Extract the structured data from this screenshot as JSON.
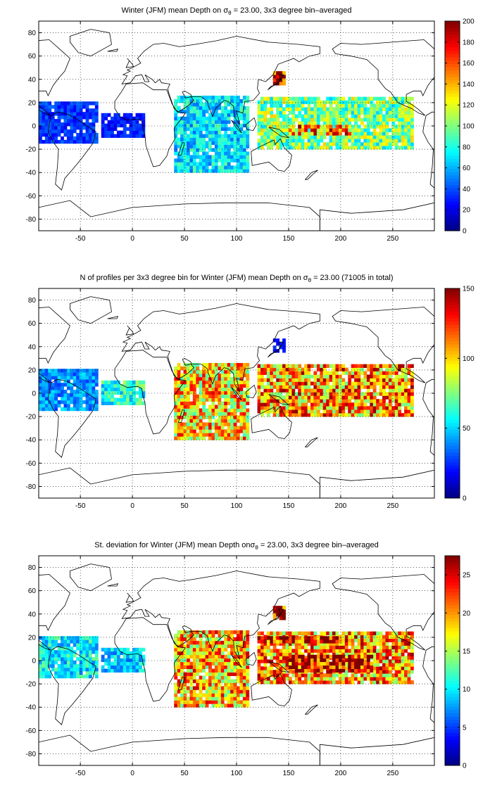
{
  "figure": {
    "panels": [
      {
        "title_prefix": "Winter (JFM) mean Depth on σ",
        "title_sub": "θ",
        "title_suffix": " = 23.00, 3x3 degree bin–averaged",
        "colorbar_ticks": [
          0,
          20,
          40,
          60,
          80,
          100,
          120,
          140,
          160,
          180,
          200
        ]
      },
      {
        "title_prefix": "N of profiles per 3x3 degree bin for Winter (JFM) mean Depth on σ",
        "title_sub": "θ",
        "title_suffix": " = 23.00 (71005 in total)",
        "colorbar_ticks": [
          0,
          50,
          100,
          150
        ]
      },
      {
        "title_prefix": "St. deviation for Winter (JFM) mean Depth onσ",
        "title_sub": "θ",
        "title_suffix": " = 23.00, 3x3 degree bin–averaged",
        "colorbar_ticks": [
          0,
          5,
          10,
          15,
          20,
          25
        ]
      }
    ]
  },
  "chart_data": [
    {
      "type": "heatmap",
      "title": "Winter (JFM) mean Depth on σθ = 23.00, 3x3 degree bin–averaged",
      "xlim": [
        -90,
        290
      ],
      "ylim": [
        -90,
        90
      ],
      "xticks": [
        -50,
        0,
        50,
        100,
        150,
        200,
        250
      ],
      "yticks": [
        -80,
        -60,
        -40,
        -20,
        0,
        20,
        40,
        60,
        80
      ],
      "grid": true,
      "colormap": "jet",
      "clim": [
        0,
        200
      ],
      "colorbar_ticks": [
        0,
        20,
        40,
        60,
        80,
        100,
        120,
        140,
        160,
        180,
        200
      ],
      "regions": [
        {
          "lon": [
            -90,
            -35
          ],
          "lat": [
            -15,
            20
          ],
          "value": 35
        },
        {
          "lon": [
            -30,
            10
          ],
          "lat": [
            -10,
            10
          ],
          "value": 30
        },
        {
          "lon": [
            40,
            110
          ],
          "lat": [
            -40,
            25
          ],
          "value": 70
        },
        {
          "lon": [
            120,
            270
          ],
          "lat": [
            -20,
            25
          ],
          "value": 100
        },
        {
          "lon": [
            150,
            210
          ],
          "lat": [
            -8,
            0
          ],
          "value": 150
        },
        {
          "lon": [
            135,
            145
          ],
          "lat": [
            35,
            45
          ],
          "value": 190
        }
      ]
    },
    {
      "type": "heatmap",
      "title": "N of profiles per 3x3 degree bin for Winter (JFM) mean Depth on σθ = 23.00 (71005 in total)",
      "xlim": [
        -90,
        290
      ],
      "ylim": [
        -90,
        90
      ],
      "xticks": [
        -50,
        0,
        50,
        100,
        150,
        200,
        250
      ],
      "yticks": [
        -80,
        -60,
        -40,
        -20,
        0,
        20,
        40,
        60,
        80
      ],
      "grid": true,
      "colormap": "jet",
      "clim": [
        0,
        150
      ],
      "total_profiles": 71005,
      "colorbar_ticks": [
        0,
        50,
        100,
        150
      ],
      "regions": [
        {
          "lon": [
            -90,
            -35
          ],
          "lat": [
            -15,
            20
          ],
          "value": 40
        },
        {
          "lon": [
            -30,
            10
          ],
          "lat": [
            -10,
            10
          ],
          "value": 60
        },
        {
          "lon": [
            40,
            110
          ],
          "lat": [
            -40,
            25
          ],
          "value": 100
        },
        {
          "lon": [
            120,
            270
          ],
          "lat": [
            -20,
            25
          ],
          "value": 110
        },
        {
          "lon": [
            135,
            145
          ],
          "lat": [
            35,
            45
          ],
          "value": 20
        }
      ]
    },
    {
      "type": "heatmap",
      "title": "St. deviation for Winter (JFM) mean Depth onσθ = 23.00, 3x3 degree bin–averaged",
      "xlim": [
        -90,
        290
      ],
      "ylim": [
        -90,
        90
      ],
      "xticks": [
        -50,
        0,
        50,
        100,
        150,
        200,
        250
      ],
      "yticks": [
        -80,
        -60,
        -40,
        -20,
        0,
        20,
        40,
        60,
        80
      ],
      "grid": true,
      "colormap": "jet",
      "clim": [
        0,
        27.5
      ],
      "colorbar_ticks": [
        0,
        5,
        10,
        15,
        20,
        25
      ],
      "regions": [
        {
          "lon": [
            -90,
            -35
          ],
          "lat": [
            -15,
            20
          ],
          "value": 10
        },
        {
          "lon": [
            -30,
            10
          ],
          "lat": [
            -10,
            10
          ],
          "value": 9
        },
        {
          "lon": [
            40,
            110
          ],
          "lat": [
            -40,
            25
          ],
          "value": 19
        },
        {
          "lon": [
            120,
            270
          ],
          "lat": [
            -20,
            25
          ],
          "value": 20
        },
        {
          "lon": [
            150,
            230
          ],
          "lat": [
            -10,
            5
          ],
          "value": 26
        },
        {
          "lon": [
            120,
            200
          ],
          "lat": [
            15,
            20
          ],
          "value": 26
        },
        {
          "lon": [
            135,
            145
          ],
          "lat": [
            35,
            45
          ],
          "value": 26
        }
      ]
    }
  ]
}
